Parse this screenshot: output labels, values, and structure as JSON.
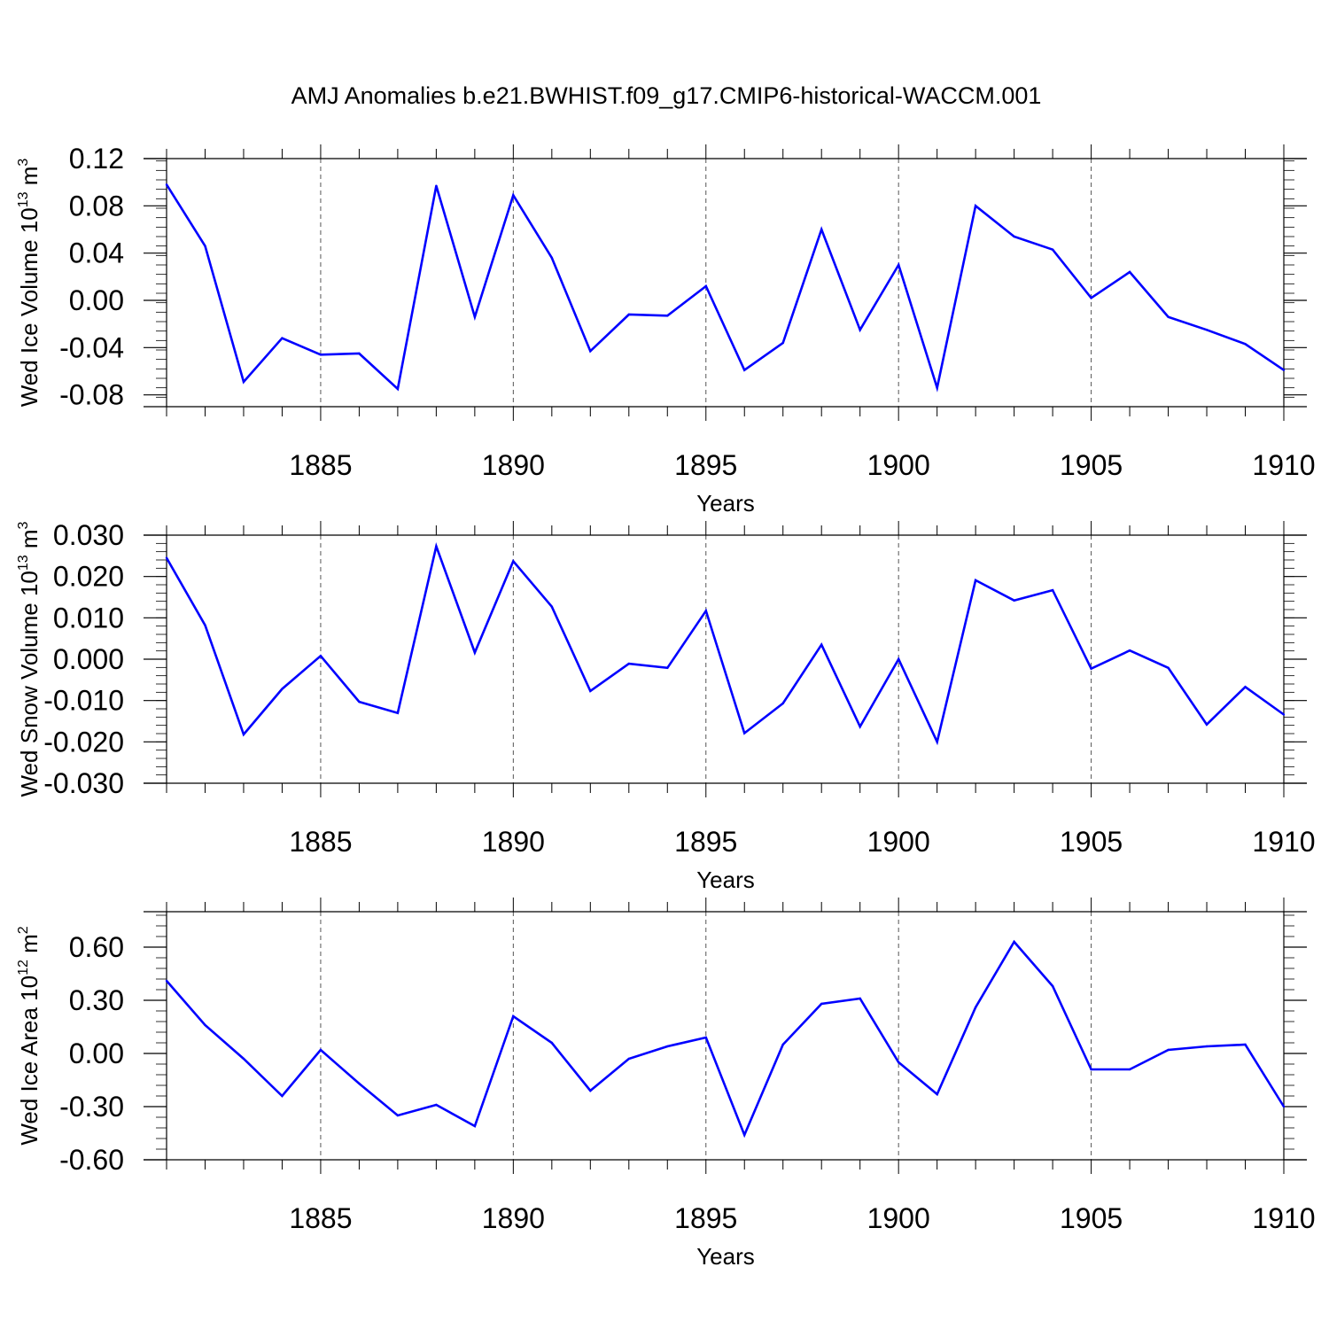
{
  "title": "AMJ Anomalies b.e21.BWHIST.f09_g17.CMIP6-historical-WACCM.001",
  "line_color": "#0000ff",
  "chart_data": [
    {
      "type": "line",
      "ylabel_text": "Wed Ice Volume 10",
      "ylabel_exp": "13",
      "ylabel_unit": " m",
      "ylabel_unit_exp": "3",
      "xlabel": "Years",
      "xlim": [
        1881,
        1910
      ],
      "ylim": [
        -0.09,
        0.12
      ],
      "yticks": [
        -0.08,
        -0.04,
        0.0,
        0.04,
        0.08,
        0.12
      ],
      "ytick_labels": [
        "-0.08",
        "-0.04",
        "0.00",
        "0.04",
        "0.08",
        "0.12"
      ],
      "xticks": [
        1885,
        1890,
        1895,
        1900,
        1905,
        1910
      ],
      "xtick_labels": [
        "1885",
        "1890",
        "1895",
        "1900",
        "1905",
        "1910"
      ],
      "x": [
        1881,
        1882,
        1883,
        1884,
        1885,
        1886,
        1887,
        1888,
        1889,
        1890,
        1891,
        1892,
        1893,
        1894,
        1895,
        1896,
        1897,
        1898,
        1899,
        1900,
        1901,
        1902,
        1903,
        1904,
        1905,
        1906,
        1907,
        1908,
        1909,
        1910
      ],
      "series": [
        {
          "values": [
            0.098,
            0.046,
            -0.069,
            -0.032,
            -0.046,
            -0.045,
            -0.075,
            0.097,
            -0.014,
            0.089,
            0.036,
            -0.043,
            -0.012,
            -0.013,
            0.012,
            -0.059,
            -0.036,
            0.06,
            -0.025,
            0.03,
            -0.074,
            0.08,
            0.054,
            0.043,
            0.002,
            0.024,
            -0.014,
            -0.025,
            -0.037,
            -0.059
          ]
        }
      ]
    },
    {
      "type": "line",
      "ylabel_text": "Wed Snow Volume 10",
      "ylabel_exp": "13",
      "ylabel_unit": " m",
      "ylabel_unit_exp": "3",
      "xlabel": "Years",
      "xlim": [
        1881,
        1910
      ],
      "ylim": [
        -0.03,
        0.03
      ],
      "yticks": [
        -0.03,
        -0.02,
        -0.01,
        0.0,
        0.01,
        0.02,
        0.03
      ],
      "ytick_labels": [
        "-0.030",
        "-0.020",
        "-0.010",
        "0.000",
        "0.010",
        "0.020",
        "0.030"
      ],
      "xticks": [
        1885,
        1890,
        1895,
        1900,
        1905,
        1910
      ],
      "xtick_labels": [
        "1885",
        "1890",
        "1895",
        "1900",
        "1905",
        "1910"
      ],
      "x": [
        1881,
        1882,
        1883,
        1884,
        1885,
        1886,
        1887,
        1888,
        1889,
        1890,
        1891,
        1892,
        1893,
        1894,
        1895,
        1896,
        1897,
        1898,
        1899,
        1900,
        1901,
        1902,
        1903,
        1904,
        1905,
        1906,
        1907,
        1908,
        1909,
        1910
      ],
      "series": [
        {
          "values": [
            0.0245,
            0.0082,
            -0.0182,
            -0.0072,
            0.0008,
            -0.0103,
            -0.013,
            0.0273,
            0.0016,
            0.0237,
            0.0127,
            -0.0077,
            -0.0011,
            -0.0021,
            0.0117,
            -0.0179,
            -0.0107,
            0.0035,
            -0.0163,
            0.0,
            -0.02,
            0.0191,
            0.0142,
            0.0167,
            -0.0023,
            0.0021,
            -0.0021,
            -0.0158,
            -0.0067,
            -0.0134
          ]
        }
      ]
    },
    {
      "type": "line",
      "ylabel_text": "Wed Ice Area 10",
      "ylabel_exp": "12",
      "ylabel_unit": " m",
      "ylabel_unit_exp": "2",
      "xlabel": "Years",
      "xlim": [
        1881,
        1910
      ],
      "ylim": [
        -0.6,
        0.8
      ],
      "yticks": [
        -0.6,
        -0.3,
        0.0,
        0.3,
        0.6
      ],
      "ytick_labels": [
        "-0.60",
        "-0.30",
        "0.00",
        "0.30",
        "0.60"
      ],
      "xticks": [
        1885,
        1890,
        1895,
        1900,
        1905,
        1910
      ],
      "xtick_labels": [
        "1885",
        "1890",
        "1895",
        "1900",
        "1905",
        "1910"
      ],
      "x": [
        1881,
        1882,
        1883,
        1884,
        1885,
        1886,
        1887,
        1888,
        1889,
        1890,
        1891,
        1892,
        1893,
        1894,
        1895,
        1896,
        1897,
        1898,
        1899,
        1900,
        1901,
        1902,
        1903,
        1904,
        1905,
        1906,
        1907,
        1908,
        1909,
        1910
      ],
      "series": [
        {
          "values": [
            0.41,
            0.16,
            -0.03,
            -0.24,
            0.02,
            -0.17,
            -0.35,
            -0.29,
            -0.41,
            0.21,
            0.06,
            -0.21,
            -0.03,
            0.04,
            0.09,
            -0.46,
            0.05,
            0.28,
            0.31,
            -0.05,
            -0.23,
            0.26,
            0.63,
            0.38,
            -0.09,
            -0.09,
            0.02,
            0.04,
            0.05,
            -0.3
          ]
        }
      ]
    }
  ]
}
